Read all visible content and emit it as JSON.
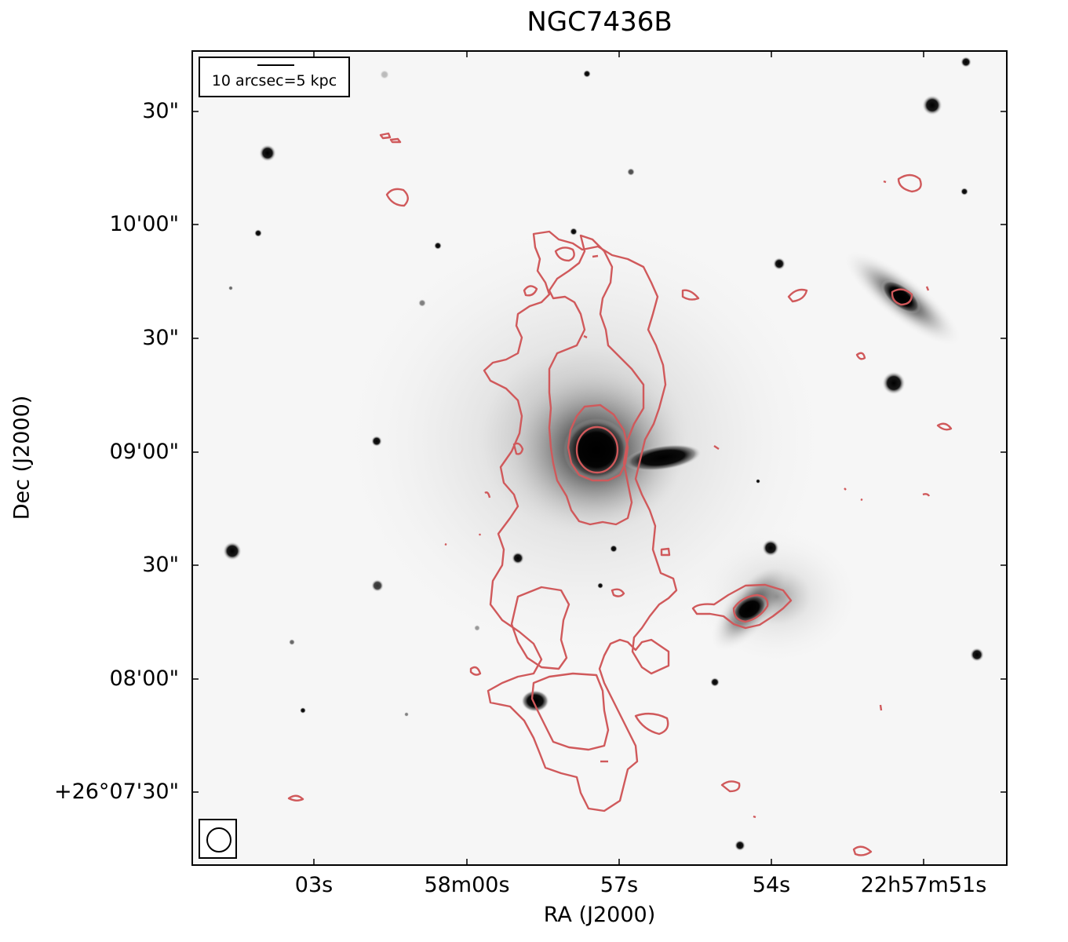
{
  "figure": {
    "title": "NGC7436B",
    "xlabel": "RA (J2000)",
    "ylabel": "Dec (J2000)",
    "x_ticks": [
      "03s",
      "58m00s",
      "57s",
      "54s",
      "22h57m51s"
    ],
    "y_ticks": [
      "30\"",
      "10'00\"",
      "30\"",
      "09'00\"",
      "30\"",
      "08'00\"",
      "+26°07'30\""
    ],
    "scale_bar_label": "10 arcsec=5 kpc",
    "contour_color": "#d0595b",
    "background": "grayscale optical image (inverted)"
  }
}
